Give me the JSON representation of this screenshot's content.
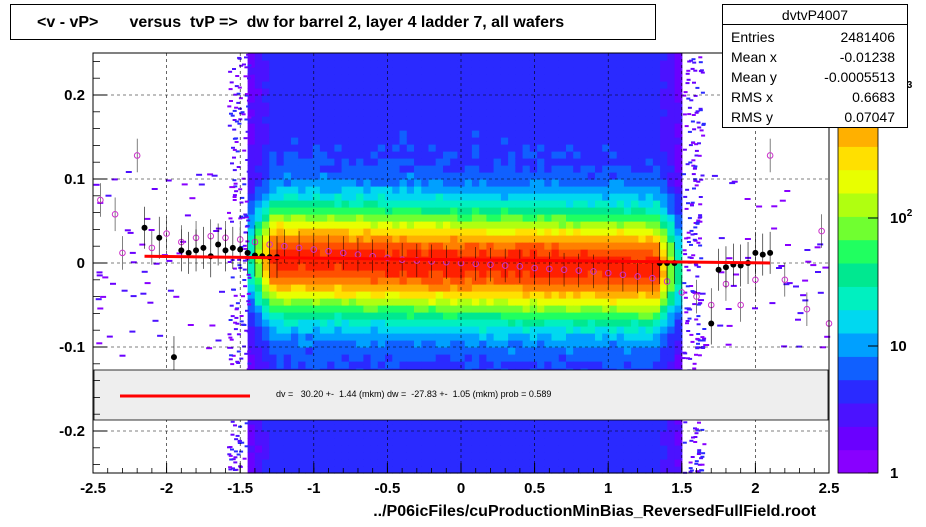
{
  "title": "<v - vP>       versus  tvP =>  dw for barrel 2, layer 4 ladder 7, all wafers",
  "stats": {
    "name": "dvtvP4007",
    "rows": [
      {
        "label": "Entries",
        "value": "2481406"
      },
      {
        "label": "Mean x",
        "value": "-0.01238"
      },
      {
        "label": "Mean y",
        "value": "-0.0005513"
      },
      {
        "label": "RMS x",
        "value": "0.6683"
      },
      {
        "label": "RMS y",
        "value": "0.07047"
      }
    ]
  },
  "fit_text": "dv =   30.20 +-  1.44 (mkm) dw =  -27.83 +-  1.05 (mkm) prob = 0.589",
  "x_axis_title": "../P06icFiles/cuProductionMinBias_ReversedFullField.root",
  "colors": {
    "fit_line": "#ff0000",
    "profile_black": "#000000",
    "profile_open": "#cc33cc",
    "legend_bg": "#eeeeee"
  },
  "chart_data": {
    "type": "heatmap",
    "title": "<v - vP>       versus  tvP =>  dw for barrel 2, layer 4 ladder 7, all wafers",
    "xlim": [
      -2.5,
      2.5
    ],
    "ylim": [
      -0.25,
      0.25
    ],
    "x_ticks": [
      "-2.5",
      "-2",
      "-1.5",
      "-1",
      "-0.5",
      "0",
      "0.5",
      "1",
      "1.5",
      "2",
      "2.5"
    ],
    "y_ticks": [
      "-0.2",
      "-0.1",
      "0",
      "0.1",
      "0.2"
    ],
    "z_scale": "log",
    "z_ticks": [
      "1",
      "10",
      "10^2",
      "10^3"
    ],
    "dense_band_x": [
      -1.45,
      1.5
    ],
    "grid": true,
    "profile_filled": [
      [
        -2.15,
        0.042
      ],
      [
        -2.05,
        0.03
      ],
      [
        -1.95,
        -0.112
      ],
      [
        -1.9,
        0.015
      ],
      [
        -1.85,
        0.012
      ],
      [
        -1.8,
        0.015
      ],
      [
        -1.75,
        0.018
      ],
      [
        -1.7,
        0.008
      ],
      [
        -1.65,
        0.022
      ],
      [
        -1.6,
        0.015
      ],
      [
        -1.55,
        0.018
      ],
      [
        -1.5,
        0.016
      ],
      [
        -1.45,
        0.012
      ],
      [
        -1.4,
        0.009
      ],
      [
        -1.35,
        0.008
      ],
      [
        -1.3,
        0.007
      ],
      [
        -1.25,
        0.007
      ],
      [
        1.35,
        0.0
      ],
      [
        1.4,
        0.0
      ],
      [
        1.45,
        0.0
      ],
      [
        1.7,
        -0.072
      ],
      [
        1.75,
        -0.008
      ],
      [
        1.8,
        -0.005
      ],
      [
        1.85,
        -0.002
      ],
      [
        1.9,
        -0.003
      ],
      [
        1.95,
        0.0
      ],
      [
        2.0,
        0.012
      ],
      [
        2.05,
        0.01
      ],
      [
        2.1,
        0.012
      ]
    ],
    "profile_open": [
      [
        -2.45,
        0.075
      ],
      [
        -2.35,
        0.058
      ],
      [
        -2.3,
        0.012
      ],
      [
        -2.2,
        0.128
      ],
      [
        -2.1,
        0.018
      ],
      [
        -2.0,
        0.035
      ],
      [
        -1.9,
        0.025
      ],
      [
        -1.8,
        0.03
      ],
      [
        -1.7,
        0.032
      ],
      [
        -1.6,
        0.03
      ],
      [
        -1.5,
        0.028
      ],
      [
        -1.4,
        0.025
      ],
      [
        -1.3,
        0.022
      ],
      [
        -1.2,
        0.02
      ],
      [
        -1.1,
        0.018
      ],
      [
        -1.0,
        0.016
      ],
      [
        -0.9,
        0.014
      ],
      [
        -0.8,
        0.012
      ],
      [
        -0.7,
        0.01
      ],
      [
        -0.6,
        0.008
      ],
      [
        -0.5,
        0.006
      ],
      [
        -0.4,
        0.004
      ],
      [
        -0.3,
        0.003
      ],
      [
        -0.2,
        0.002
      ],
      [
        -0.1,
        0.001
      ],
      [
        0.0,
        0.0
      ],
      [
        0.1,
        -0.001
      ],
      [
        0.2,
        -0.002
      ],
      [
        0.3,
        -0.003
      ],
      [
        0.4,
        -0.004
      ],
      [
        0.5,
        -0.006
      ],
      [
        0.6,
        -0.007
      ],
      [
        0.7,
        -0.008
      ],
      [
        0.8,
        -0.009
      ],
      [
        0.9,
        -0.01
      ],
      [
        1.0,
        -0.012
      ],
      [
        1.1,
        -0.014
      ],
      [
        1.2,
        -0.016
      ],
      [
        1.3,
        -0.018
      ],
      [
        1.4,
        -0.022
      ],
      [
        1.5,
        -0.035
      ],
      [
        1.6,
        -0.04
      ],
      [
        1.7,
        -0.05
      ],
      [
        1.8,
        -0.025
      ],
      [
        1.9,
        -0.05
      ],
      [
        2.0,
        -0.02
      ],
      [
        2.1,
        0.128
      ],
      [
        2.2,
        -0.02
      ],
      [
        2.35,
        -0.055
      ],
      [
        2.45,
        0.038
      ],
      [
        2.5,
        -0.072
      ]
    ],
    "fit_line": [
      [
        -2.15,
        0.008
      ],
      [
        2.1,
        0.0
      ]
    ]
  }
}
